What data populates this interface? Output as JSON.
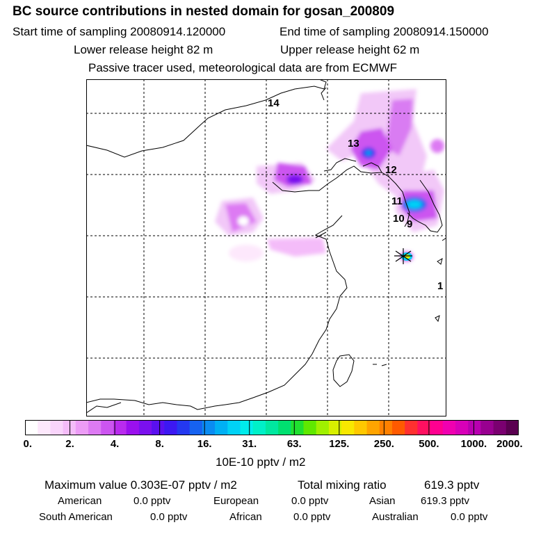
{
  "header": {
    "title": "BC  source contributions in nested domain for gosan_200809",
    "start_time": "Start time of sampling 20080914.120000",
    "end_time": "End time of sampling 20080914.150000",
    "lower_height": "Lower release height   82 m",
    "upper_height": "Upper release height   62 m",
    "note": "Passive tracer used, meteorological data are from ECMWF"
  },
  "map": {
    "labels": [
      "14",
      "13",
      "12",
      "11",
      "10",
      "9",
      "1"
    ]
  },
  "colorbar": {
    "tick_labels": [
      "0.",
      "2.",
      "4.",
      "8.",
      "16.",
      "31.",
      "63.",
      "125.",
      "250.",
      "500.",
      "1000.",
      "2000."
    ],
    "unit": "10E-10 pptv / m2",
    "colors": [
      "#ffffff",
      "#fde8fc",
      "#f9d4fb",
      "#f4bcf9",
      "#ec9cf6",
      "#dd7af3",
      "#cc55f0",
      "#b92bee",
      "#9a10ee",
      "#7a10ee",
      "#5a10f0",
      "#3c18f2",
      "#2438f0",
      "#1662f0",
      "#0a8cf2",
      "#00b0f4",
      "#00d2f6",
      "#00ecec",
      "#00f0c8",
      "#00e8a0",
      "#00e070",
      "#20e030",
      "#60e800",
      "#a0f000",
      "#d8f000",
      "#f8e800",
      "#ffc800",
      "#ffa400",
      "#ff8000",
      "#ff5a00",
      "#ff3030",
      "#ff1060",
      "#ff0090",
      "#f000b0",
      "#d800b8",
      "#b800b0",
      "#980090",
      "#7a0070",
      "#5a0050"
    ]
  },
  "summary": {
    "max_value": "Maximum value  0.303E-07 pptv / m2",
    "total_label": "Total mixing ratio",
    "total_value": "619.3 pptv",
    "american_label": "American",
    "american_value": "0.0 pptv",
    "european_label": "European",
    "european_value": "0.0 pptv",
    "asian_label": "Asian",
    "asian_value": "619.3 pptv",
    "south_american_label": "South American",
    "south_american_value": "0.0 pptv",
    "african_label": "African",
    "african_value": "0.0 pptv",
    "australian_label": "Australian",
    "australian_value": "0.0 pptv"
  }
}
